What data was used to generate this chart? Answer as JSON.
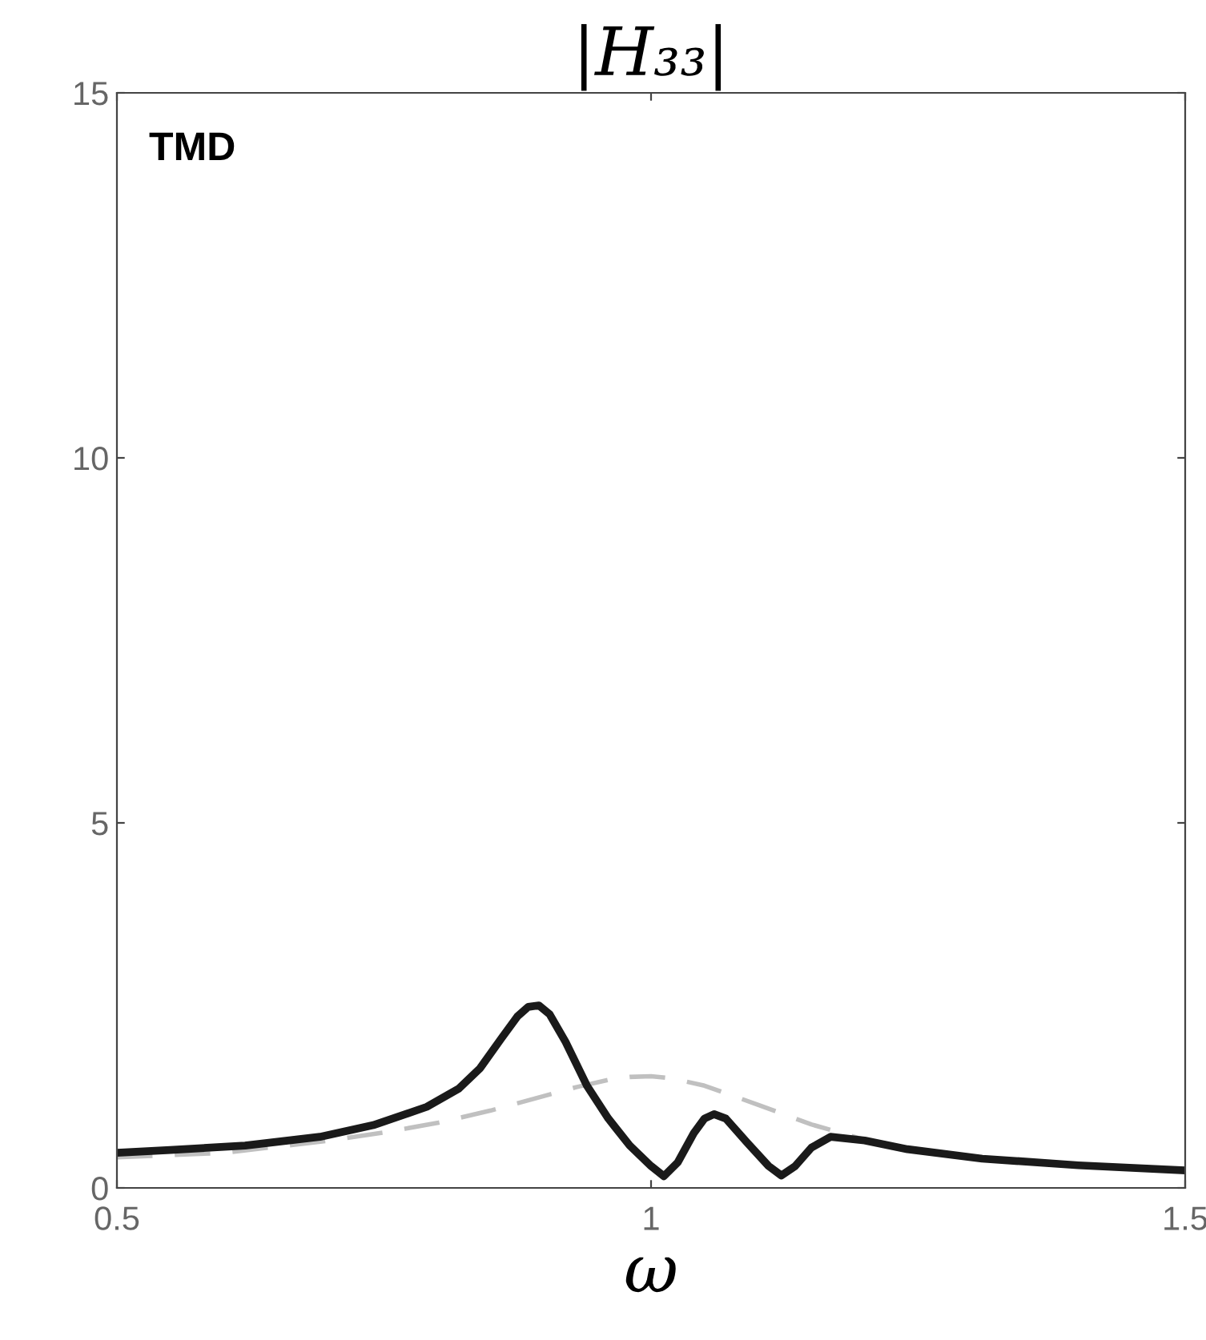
{
  "chart_data": {
    "type": "line",
    "title": "|H₃₃|",
    "xlabel": "ω",
    "annotations": [
      "TMD"
    ],
    "xlim": [
      0.5,
      1.5
    ],
    "ylim": [
      0,
      15
    ],
    "xticks": [
      0.5,
      1,
      1.5
    ],
    "yticks": [
      0,
      5,
      10,
      15
    ],
    "grid": false,
    "legend": false,
    "series": [
      {
        "color": "#c0c0c0",
        "line_style": "dashed",
        "x": [
          0.5,
          0.6,
          0.7,
          0.75,
          0.8,
          0.85,
          0.9,
          0.93,
          0.96,
          0.98,
          1.0,
          1.02,
          1.05,
          1.1,
          1.15,
          1.2,
          1.24,
          1.31,
          1.4,
          1.5
        ],
        "values": [
          0.42,
          0.48,
          0.65,
          0.76,
          0.89,
          1.06,
          1.26,
          1.38,
          1.48,
          1.52,
          1.53,
          1.5,
          1.4,
          1.14,
          0.87,
          0.66,
          0.53,
          0.4,
          0.31,
          0.24
        ]
      },
      {
        "color": "#1a1a1a",
        "line_style": "solid",
        "x": [
          0.5,
          0.55,
          0.62,
          0.69,
          0.74,
          0.79,
          0.82,
          0.84,
          0.86,
          0.875,
          0.885,
          0.895,
          0.905,
          0.92,
          0.94,
          0.96,
          0.98,
          1.0,
          1.012,
          1.025,
          1.04,
          1.05,
          1.059,
          1.07,
          1.09,
          1.11,
          1.122,
          1.135,
          1.15,
          1.168,
          1.2,
          1.24,
          1.31,
          1.4,
          1.5
        ],
        "values": [
          0.48,
          0.52,
          0.58,
          0.7,
          0.86,
          1.11,
          1.36,
          1.64,
          2.05,
          2.35,
          2.48,
          2.5,
          2.38,
          2.0,
          1.4,
          0.95,
          0.58,
          0.3,
          0.16,
          0.35,
          0.75,
          0.95,
          1.01,
          0.95,
          0.62,
          0.3,
          0.17,
          0.3,
          0.55,
          0.7,
          0.65,
          0.53,
          0.4,
          0.31,
          0.24
        ]
      }
    ]
  }
}
